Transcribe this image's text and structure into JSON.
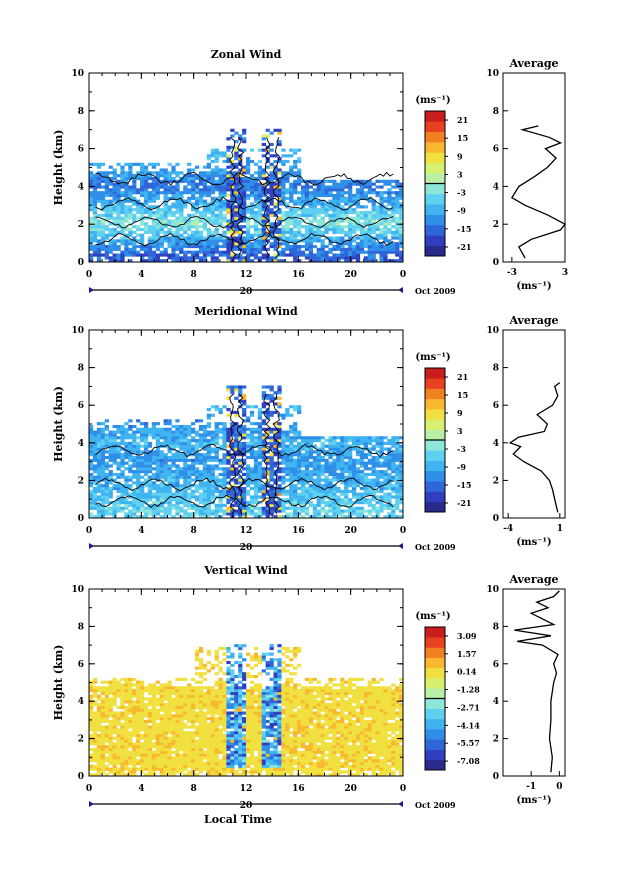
{
  "shared": {
    "xlabel": "Local Time",
    "ylabel": "Height (km)",
    "date_label": "20",
    "month_label": "Oct 2009",
    "colorbar_unit": "(ms⁻¹)",
    "avg_title": "Average",
    "avg_unit": "(ms⁻¹)"
  },
  "colors": {
    "palette": [
      "#2a2a8c",
      "#2f3fbf",
      "#2f66d8",
      "#2f8fe8",
      "#3fb4f0",
      "#5fd0f0",
      "#8ee6d8",
      "#b8f0a8",
      "#d8f070",
      "#f0e040",
      "#f8b830",
      "#f08020",
      "#e84020",
      "#c81e1e"
    ]
  },
  "chart_data": [
    {
      "type": "heatmap",
      "title": "Zonal Wind",
      "xlabel": "",
      "ylabel": "Height (km)",
      "x_ticks": [
        "0",
        "4",
        "8",
        "12",
        "16",
        "20",
        "0"
      ],
      "y_ticks": [
        "0",
        "2",
        "4",
        "6",
        "8",
        "10"
      ],
      "xlim": [
        0,
        24
      ],
      "ylim": [
        0,
        10
      ],
      "colorbar": {
        "ticks": [
          "-21",
          "-15",
          "-9",
          "-3",
          "3",
          "9",
          "15",
          "21"
        ],
        "range": [
          -24,
          24
        ]
      },
      "field": {
        "base": -6,
        "mean_profile": [
          [
            0.3,
            -10
          ],
          [
            1,
            -4
          ],
          [
            2,
            4
          ],
          [
            3,
            -3
          ],
          [
            4,
            -8
          ],
          [
            5,
            -3
          ],
          [
            6,
            0
          ],
          [
            7,
            4
          ]
        ]
      },
      "average": {
        "title": "Average",
        "x_ticks": [
          "-3",
          "3"
        ],
        "xlim": [
          -4,
          3
        ],
        "heights": [
          0.2,
          0.8,
          1.2,
          1.7,
          2.0,
          2.5,
          3.0,
          3.4,
          4.0,
          4.5,
          5.0,
          5.5,
          6.0,
          6.3,
          6.6,
          7.0,
          7.2
        ],
        "values": [
          -1.5,
          -2.2,
          -0.8,
          2.5,
          3.0,
          1.0,
          -1.5,
          -3.0,
          -2.2,
          -0.5,
          1.0,
          2.0,
          0.8,
          2.5,
          1.2,
          -1.8,
          0.0
        ]
      }
    },
    {
      "type": "heatmap",
      "title": "Meridional Wind",
      "xlabel": "",
      "ylabel": "Height (km)",
      "x_ticks": [
        "0",
        "4",
        "8",
        "12",
        "16",
        "20",
        "0"
      ],
      "y_ticks": [
        "0",
        "2",
        "4",
        "6",
        "8",
        "10"
      ],
      "xlim": [
        0,
        24
      ],
      "ylim": [
        0,
        10
      ],
      "colorbar": {
        "ticks": [
          "-21",
          "-15",
          "-9",
          "-3",
          "3",
          "9",
          "15",
          "21"
        ],
        "range": [
          -24,
          24
        ]
      },
      "field": {
        "base": -5,
        "mean_profile": [
          [
            0.5,
            0
          ],
          [
            1.5,
            -3
          ],
          [
            3,
            -6
          ],
          [
            4,
            -3
          ],
          [
            5,
            -7
          ],
          [
            6,
            -2
          ],
          [
            7,
            -1
          ]
        ]
      },
      "average": {
        "title": "Average",
        "x_ticks": [
          "-4",
          "1"
        ],
        "xlim": [
          -4.5,
          1.5
        ],
        "heights": [
          0.3,
          1.0,
          1.5,
          2.0,
          2.5,
          3.0,
          3.4,
          3.8,
          4.0,
          4.3,
          4.6,
          5.0,
          5.5,
          6.0,
          6.5,
          7.0,
          7.2
        ],
        "values": [
          0.8,
          0.5,
          0.3,
          0.0,
          -0.8,
          -2.5,
          -3.5,
          -2.8,
          -3.8,
          -3.0,
          -0.5,
          -0.2,
          -1.2,
          0.3,
          0.8,
          0.5,
          1.0
        ]
      }
    },
    {
      "type": "heatmap",
      "title": "Vertical Wind",
      "xlabel": "Local Time",
      "ylabel": "Height (km)",
      "x_ticks": [
        "0",
        "4",
        "8",
        "12",
        "16",
        "20",
        "0"
      ],
      "y_ticks": [
        "0",
        "2",
        "4",
        "6",
        "8",
        "10"
      ],
      "xlim": [
        0,
        24
      ],
      "ylim": [
        0,
        10
      ],
      "colorbar": {
        "ticks": [
          "-7.08",
          "-5.57",
          "-4.14",
          "-2.71",
          "-1.28",
          "0.14",
          "1.57",
          "3.09"
        ],
        "range": [
          -8,
          4
        ]
      },
      "field": {
        "base": 0.3
      },
      "average": {
        "title": "Average",
        "x_ticks": [
          "-1",
          "0"
        ],
        "xlim": [
          -2,
          0.2
        ],
        "heights": [
          0.2,
          1,
          2,
          3,
          4,
          5,
          5.5,
          6,
          6.5,
          7,
          7.2,
          7.5,
          7.8,
          8.1,
          8.4,
          8.7,
          9.0,
          9.3,
          9.6,
          9.9
        ],
        "values": [
          -0.3,
          -0.25,
          -0.35,
          -0.3,
          -0.3,
          -0.2,
          -0.1,
          -0.2,
          -0.05,
          -0.6,
          -1.5,
          -0.3,
          -1.6,
          -0.2,
          -0.6,
          -1.0,
          -0.4,
          -0.8,
          -0.2,
          0.0
        ]
      }
    }
  ]
}
